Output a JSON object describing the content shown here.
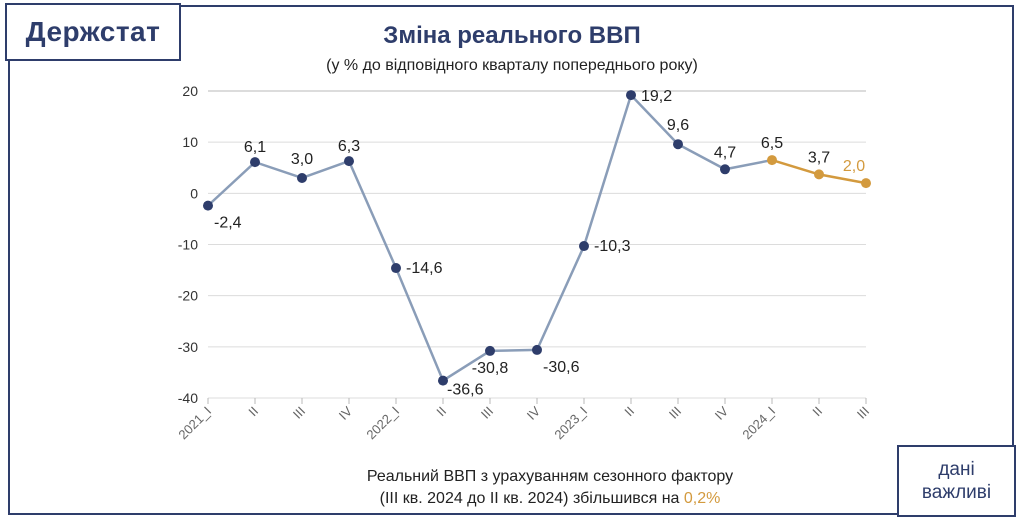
{
  "brand": "Держстат",
  "badge": {
    "line1": "дані",
    "line2": "важливі"
  },
  "colors": {
    "navy": "#2e3d6b",
    "line": "#8a9db8",
    "forecast": "#d39a3e",
    "grid": "#dcdcdc"
  },
  "chart_data": {
    "type": "line",
    "title": "Зміна реального ВВП",
    "subtitle": "(у % до відповідного кварталу попереднього року)",
    "categories": [
      "2021_I",
      "II",
      "III",
      "IV",
      "2022_I",
      "II",
      "III",
      "IV",
      "2023_I",
      "II",
      "III",
      "IV",
      "2024_I",
      "II",
      "III"
    ],
    "values": [
      -2.4,
      6.1,
      3.0,
      6.3,
      -14.6,
      -36.6,
      -30.8,
      -30.6,
      -10.3,
      19.2,
      9.6,
      4.7,
      6.5,
      3.7,
      2.0
    ],
    "labels": [
      "-2,4",
      "6,1",
      "3,0",
      "6,3",
      "-14,6",
      "-36,6",
      "-30,8",
      "-30,6",
      "-10,3",
      "19,2",
      "9,6",
      "4,7",
      "6,5",
      "3,7",
      "2,0"
    ],
    "highlight_from_index": 12,
    "ylim": [
      -40,
      20
    ],
    "yticks": [
      20,
      10,
      0,
      -10,
      -20,
      -30,
      -40
    ],
    "grid": true
  },
  "note": {
    "line1": "Реальний ВВП з урахуванням сезонного фактору",
    "line2_prefix": "(ІІІ кв. 2024 до ІІ кв. 2024) збільшився на ",
    "line2_value": "0,2%"
  }
}
